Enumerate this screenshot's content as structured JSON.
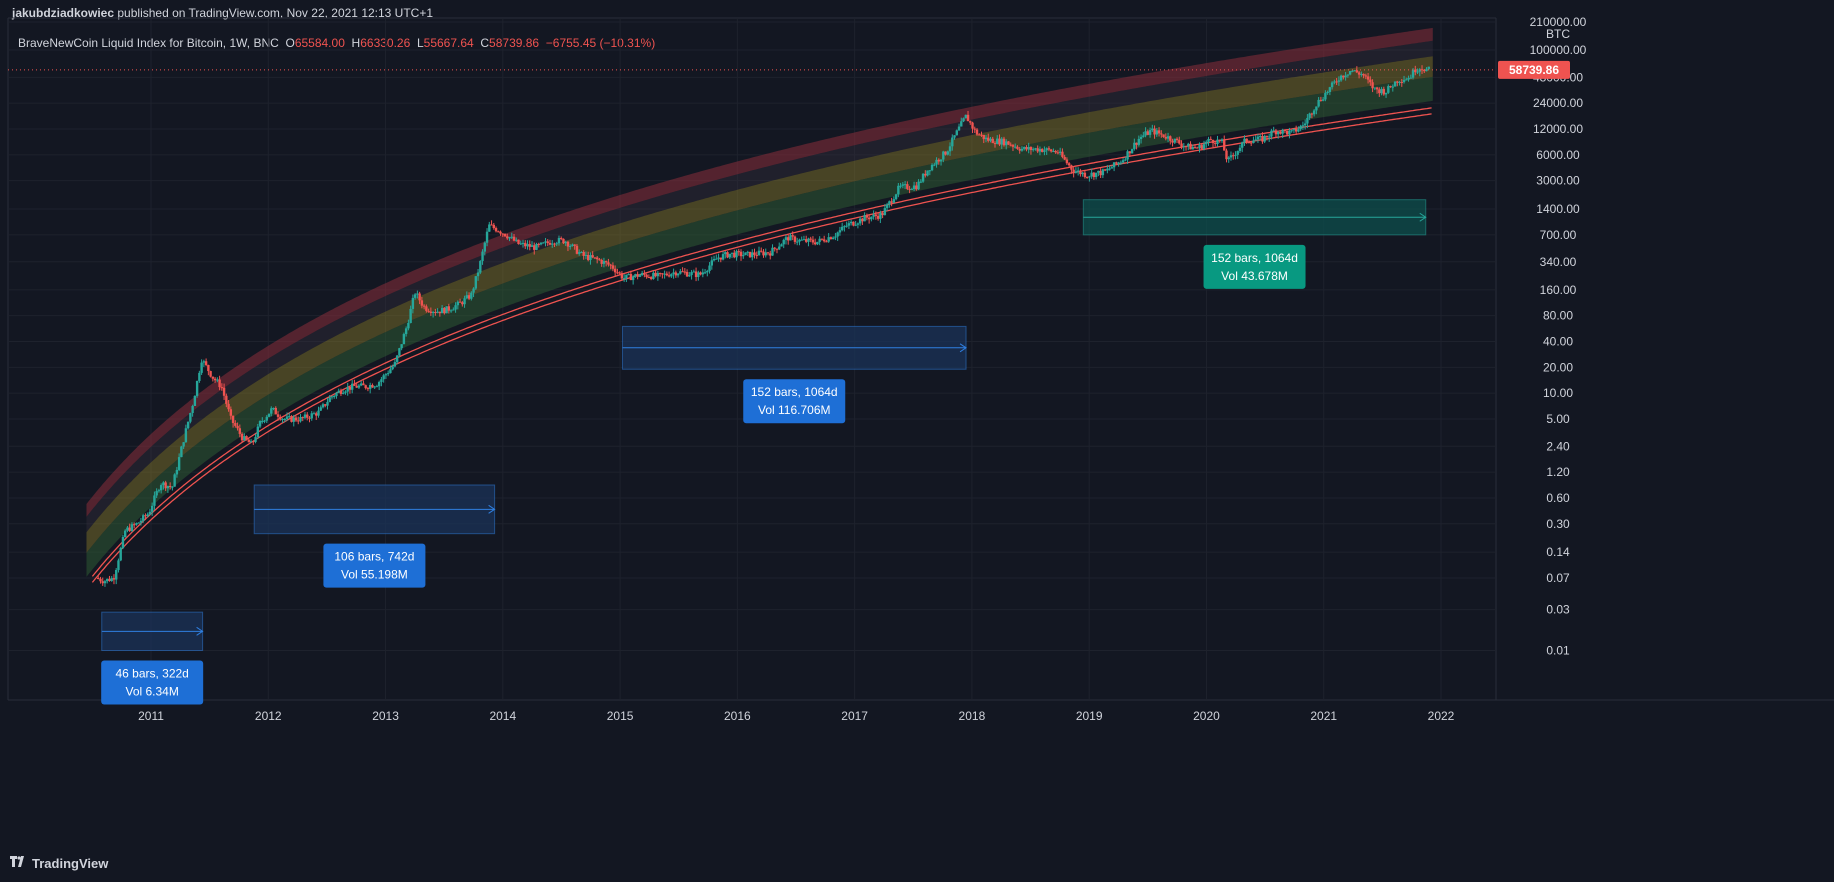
{
  "header": {
    "author": "jakubdziadkowiec",
    "published": "published on TradingView.com, Nov 22, 2021 12:13 UTC+1"
  },
  "legend": {
    "symbol": "BraveNewCoin Liquid Index for Bitcoin, 1W, BNC",
    "o_label": "O",
    "o_value": "65584.00",
    "h_label": "H",
    "h_value": "66330.26",
    "l_label": "L",
    "l_value": "55667.64",
    "c_label": "C",
    "c_value": "58739.86",
    "change": "−6755.45 (−10.31%)"
  },
  "footer": {
    "brand": "TradingView",
    "logo_icon": "tradingview-logo-icon"
  },
  "colors": {
    "background": "#131722",
    "up": "#26a69a",
    "down": "#ef5350",
    "band_red": "#8b2d3a",
    "band_yellow": "#8a7d2a",
    "band_green": "#2f5f34",
    "measure_blue": "#2962ff",
    "measure_teal": "#089981"
  },
  "chart_data": {
    "type": "candlestick",
    "scale": "log",
    "currency": "BTC",
    "current_price": "58739.86",
    "y_ticks": [
      "210000.00",
      "100000.00",
      "48000.00",
      "24000.00",
      "12000.00",
      "6000.00",
      "3000.00",
      "1400.00",
      "700.00",
      "340.00",
      "160.00",
      "80.00",
      "40.00",
      "20.00",
      "10.00",
      "5.00",
      "2.40",
      "1.20",
      "0.60",
      "0.30",
      "0.14",
      "0.07",
      "0.03",
      "0.01"
    ],
    "y_tick_values": [
      210000,
      100000,
      48000,
      24000,
      12000,
      6000,
      3000,
      1400,
      700,
      340,
      160,
      80,
      40,
      20,
      10,
      5,
      2.4,
      1.2,
      0.6,
      0.3,
      0.14,
      0.07,
      0.03,
      0.01
    ],
    "x_ticks": [
      "2011",
      "2012",
      "2013",
      "2014",
      "2015",
      "2016",
      "2017",
      "2018",
      "2019",
      "2020",
      "2021",
      "2022"
    ],
    "x_tick_years": [
      2011,
      2012,
      2013,
      2014,
      2015,
      2016,
      2017,
      2018,
      2019,
      2020,
      2021,
      2022
    ],
    "price_path": [
      [
        2010.55,
        0.07
      ],
      [
        2010.62,
        0.065
      ],
      [
        2010.7,
        0.07
      ],
      [
        2010.8,
        0.25
      ],
      [
        2010.9,
        0.3
      ],
      [
        2011.0,
        0.4
      ],
      [
        2011.1,
        0.9
      ],
      [
        2011.2,
        0.8
      ],
      [
        2011.3,
        3
      ],
      [
        2011.38,
        8
      ],
      [
        2011.45,
        25
      ],
      [
        2011.55,
        15
      ],
      [
        2011.62,
        12
      ],
      [
        2011.7,
        5
      ],
      [
        2011.8,
        3
      ],
      [
        2011.88,
        2.5
      ],
      [
        2011.95,
        4.5
      ],
      [
        2012.05,
        6.5
      ],
      [
        2012.15,
        5
      ],
      [
        2012.3,
        5
      ],
      [
        2012.45,
        6
      ],
      [
        2012.55,
        9
      ],
      [
        2012.65,
        11
      ],
      [
        2012.75,
        12
      ],
      [
        2012.85,
        12
      ],
      [
        2012.95,
        13
      ],
      [
        2013.1,
        22
      ],
      [
        2013.2,
        60
      ],
      [
        2013.27,
        150
      ],
      [
        2013.35,
        100
      ],
      [
        2013.45,
        90
      ],
      [
        2013.55,
        95
      ],
      [
        2013.65,
        110
      ],
      [
        2013.75,
        140
      ],
      [
        2013.82,
        300
      ],
      [
        2013.9,
        900
      ],
      [
        2013.98,
        800
      ],
      [
        2014.05,
        700
      ],
      [
        2014.15,
        550
      ],
      [
        2014.3,
        500
      ],
      [
        2014.45,
        600
      ],
      [
        2014.55,
        600
      ],
      [
        2014.7,
        400
      ],
      [
        2014.85,
        350
      ],
      [
        2014.95,
        300
      ],
      [
        2015.05,
        220
      ],
      [
        2015.2,
        240
      ],
      [
        2015.35,
        230
      ],
      [
        2015.5,
        260
      ],
      [
        2015.6,
        250
      ],
      [
        2015.7,
        240
      ],
      [
        2015.85,
        380
      ],
      [
        2015.95,
        420
      ],
      [
        2016.1,
        410
      ],
      [
        2016.3,
        440
      ],
      [
        2016.45,
        650
      ],
      [
        2016.55,
        600
      ],
      [
        2016.7,
        580
      ],
      [
        2016.85,
        700
      ],
      [
        2016.95,
        900
      ],
      [
        2017.1,
        1100
      ],
      [
        2017.25,
        1200
      ],
      [
        2017.4,
        2500
      ],
      [
        2017.55,
        2600
      ],
      [
        2017.65,
        4200
      ],
      [
        2017.8,
        6500
      ],
      [
        2017.92,
        13000
      ],
      [
        2017.97,
        17000
      ],
      [
        2018.05,
        11000
      ],
      [
        2018.15,
        9000
      ],
      [
        2018.3,
        8500
      ],
      [
        2018.45,
        7000
      ],
      [
        2018.6,
        7000
      ],
      [
        2018.75,
        6500
      ],
      [
        2018.88,
        4000
      ],
      [
        2019.0,
        3500
      ],
      [
        2019.15,
        3800
      ],
      [
        2019.3,
        5200
      ],
      [
        2019.45,
        9500
      ],
      [
        2019.55,
        11500
      ],
      [
        2019.7,
        9500
      ],
      [
        2019.85,
        7500
      ],
      [
        2019.95,
        7200
      ],
      [
        2020.05,
        9000
      ],
      [
        2020.15,
        8500
      ],
      [
        2020.2,
        5000
      ],
      [
        2020.35,
        8800
      ],
      [
        2020.5,
        9200
      ],
      [
        2020.6,
        11500
      ],
      [
        2020.75,
        10800
      ],
      [
        2020.85,
        13500
      ],
      [
        2020.95,
        23000
      ],
      [
        2021.05,
        33000
      ],
      [
        2021.15,
        48000
      ],
      [
        2021.25,
        58000
      ],
      [
        2021.35,
        52000
      ],
      [
        2021.45,
        35000
      ],
      [
        2021.55,
        33000
      ],
      [
        2021.65,
        45000
      ],
      [
        2021.75,
        48000
      ],
      [
        2021.8,
        60000
      ],
      [
        2021.85,
        63000
      ],
      [
        2021.9,
        58739.86
      ]
    ],
    "measurements": [
      {
        "start_year": 2010.58,
        "end_year": 2011.44,
        "top": 0.028,
        "bottom": 0.01,
        "label1": "46 bars, 322d",
        "label2": "Vol 6.34M",
        "color": "blue"
      },
      {
        "start_year": 2011.88,
        "end_year": 2013.93,
        "top": 0.85,
        "bottom": 0.23,
        "label1": "106 bars, 742d",
        "label2": "Vol 55.198M",
        "color": "blue"
      },
      {
        "start_year": 2015.02,
        "end_year": 2017.95,
        "top": 60,
        "bottom": 19,
        "label1": "152 bars, 1064d",
        "label2": "Vol 116.706M",
        "color": "blue"
      },
      {
        "start_year": 2018.95,
        "end_year": 2021.87,
        "top": 1800,
        "bottom": 700,
        "label1": "152 bars, 1064d",
        "label2": "Vol 43.678M",
        "color": "teal"
      }
    ]
  }
}
